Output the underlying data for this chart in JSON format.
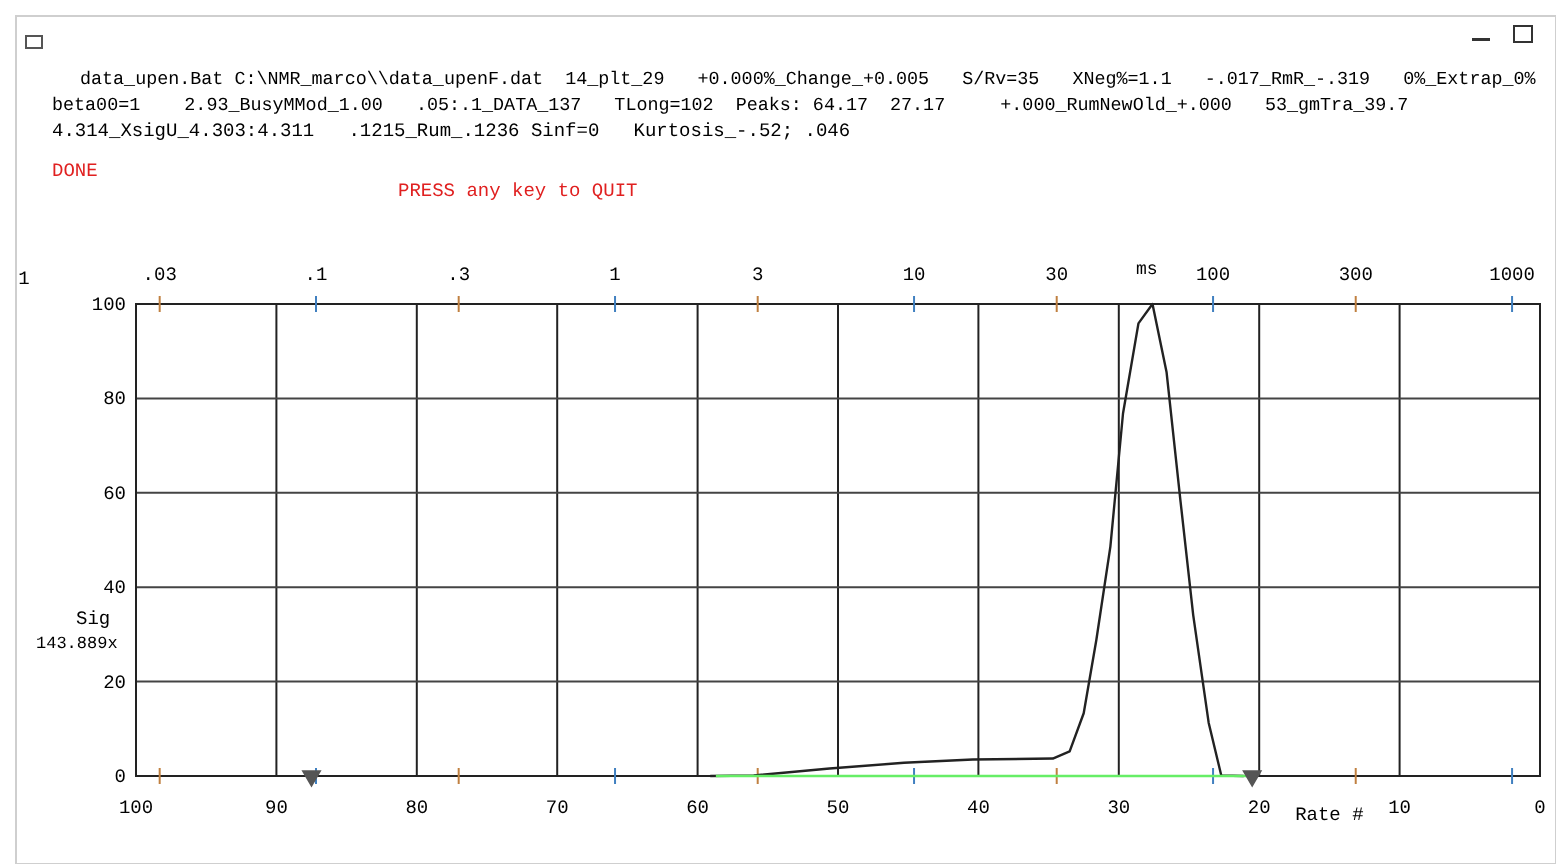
{
  "chart_data": {
    "type": "line",
    "title": "data_upen.Bat C:\\NMR_marco\\\\data_upenF.dat  14_plt_29   +0.000%_Change_+0.005   S/Rv=35   XNeg%=1.1   -.017_RmR_-.319   0%_Extrap_0%",
    "subtitle": "beta00=1    2.93_BusyMMod_1.00   .05:.1_DATA_137   TLong=102  Peaks: 64.17  27.17     +.000_RumNewOld_+.000   53_gmTra_39.7",
    "annotations": [
      "4.314_XsigU_4.303:4.311   .1215_Rum_.1236 Sinf=0   Kurtosis_-.52; .046",
      "DONE",
      "PRESS any key to QUIT",
      "1",
      "143.889x"
    ],
    "xlabel": "Rate #",
    "ylabel": "Sig",
    "x2label": "ms",
    "xlim": [
      100,
      0
    ],
    "xticks": [
      100,
      90,
      80,
      70,
      60,
      50,
      40,
      30,
      20,
      10,
      0
    ],
    "ylim": [
      0,
      100
    ],
    "yticks": [
      0,
      20,
      40,
      60,
      80,
      100
    ],
    "x2lim": [
      0.025,
      1240
    ],
    "x2ticks": [
      {
        "value": 0.03,
        "label": ".03"
      },
      {
        "value": 0.1,
        "label": ".1"
      },
      {
        "value": 0.3,
        "label": ".3"
      },
      1,
      3,
      10,
      30,
      100,
      300,
      1000
    ],
    "log": "x2",
    "grid": true,
    "series": [
      {
        "color": "#222222",
        "line_style": "solid",
        "marker": "none",
        "x": [
          59.1,
          56.0,
          50.6,
          45.3,
          40.4,
          34.7,
          33.5,
          32.5,
          31.6,
          30.6,
          29.7,
          28.6,
          27.6,
          26.6,
          25.6,
          24.7,
          23.6,
          22.7,
          21.1
        ],
        "values": [
          0,
          0.1,
          1.6,
          2.8,
          3.5,
          3.7,
          5.2,
          13.3,
          28.8,
          48.6,
          76.8,
          95.9,
          100,
          85.6,
          58.1,
          34.1,
          11.3,
          0.1,
          0
        ]
      },
      {
        "color": "#66ee66",
        "line_style": "solid",
        "marker": "none",
        "x": [
          58.7,
          20.7
        ],
        "values": [
          0,
          0
        ]
      },
      {
        "type": "scatter",
        "color": "#555555",
        "marker": "triangle",
        "x": [
          87.5,
          20.5
        ],
        "values": [
          0,
          0
        ]
      }
    ]
  }
}
